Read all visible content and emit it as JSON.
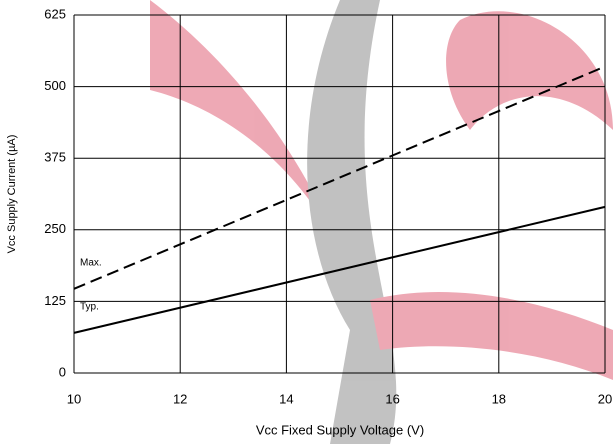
{
  "chart_data": {
    "type": "line",
    "xlabel": "Vcc Fixed Supply Voltage (V)",
    "ylabel": "Vcc Supply Current (µA)",
    "x": [
      10,
      20
    ],
    "series": [
      {
        "name": "Max.",
        "color": "#000000",
        "dashed": true,
        "values": [
          147,
          535
        ]
      },
      {
        "name": "Typ.",
        "color": "#000000",
        "dashed": false,
        "values": [
          70,
          290
        ]
      }
    ],
    "xlim": [
      10,
      20
    ],
    "xticks": [
      10,
      12,
      14,
      16,
      18,
      20
    ],
    "ylim": [
      0,
      625
    ],
    "yticks": [
      0,
      125,
      250,
      375,
      500,
      625
    ],
    "grid": true
  }
}
